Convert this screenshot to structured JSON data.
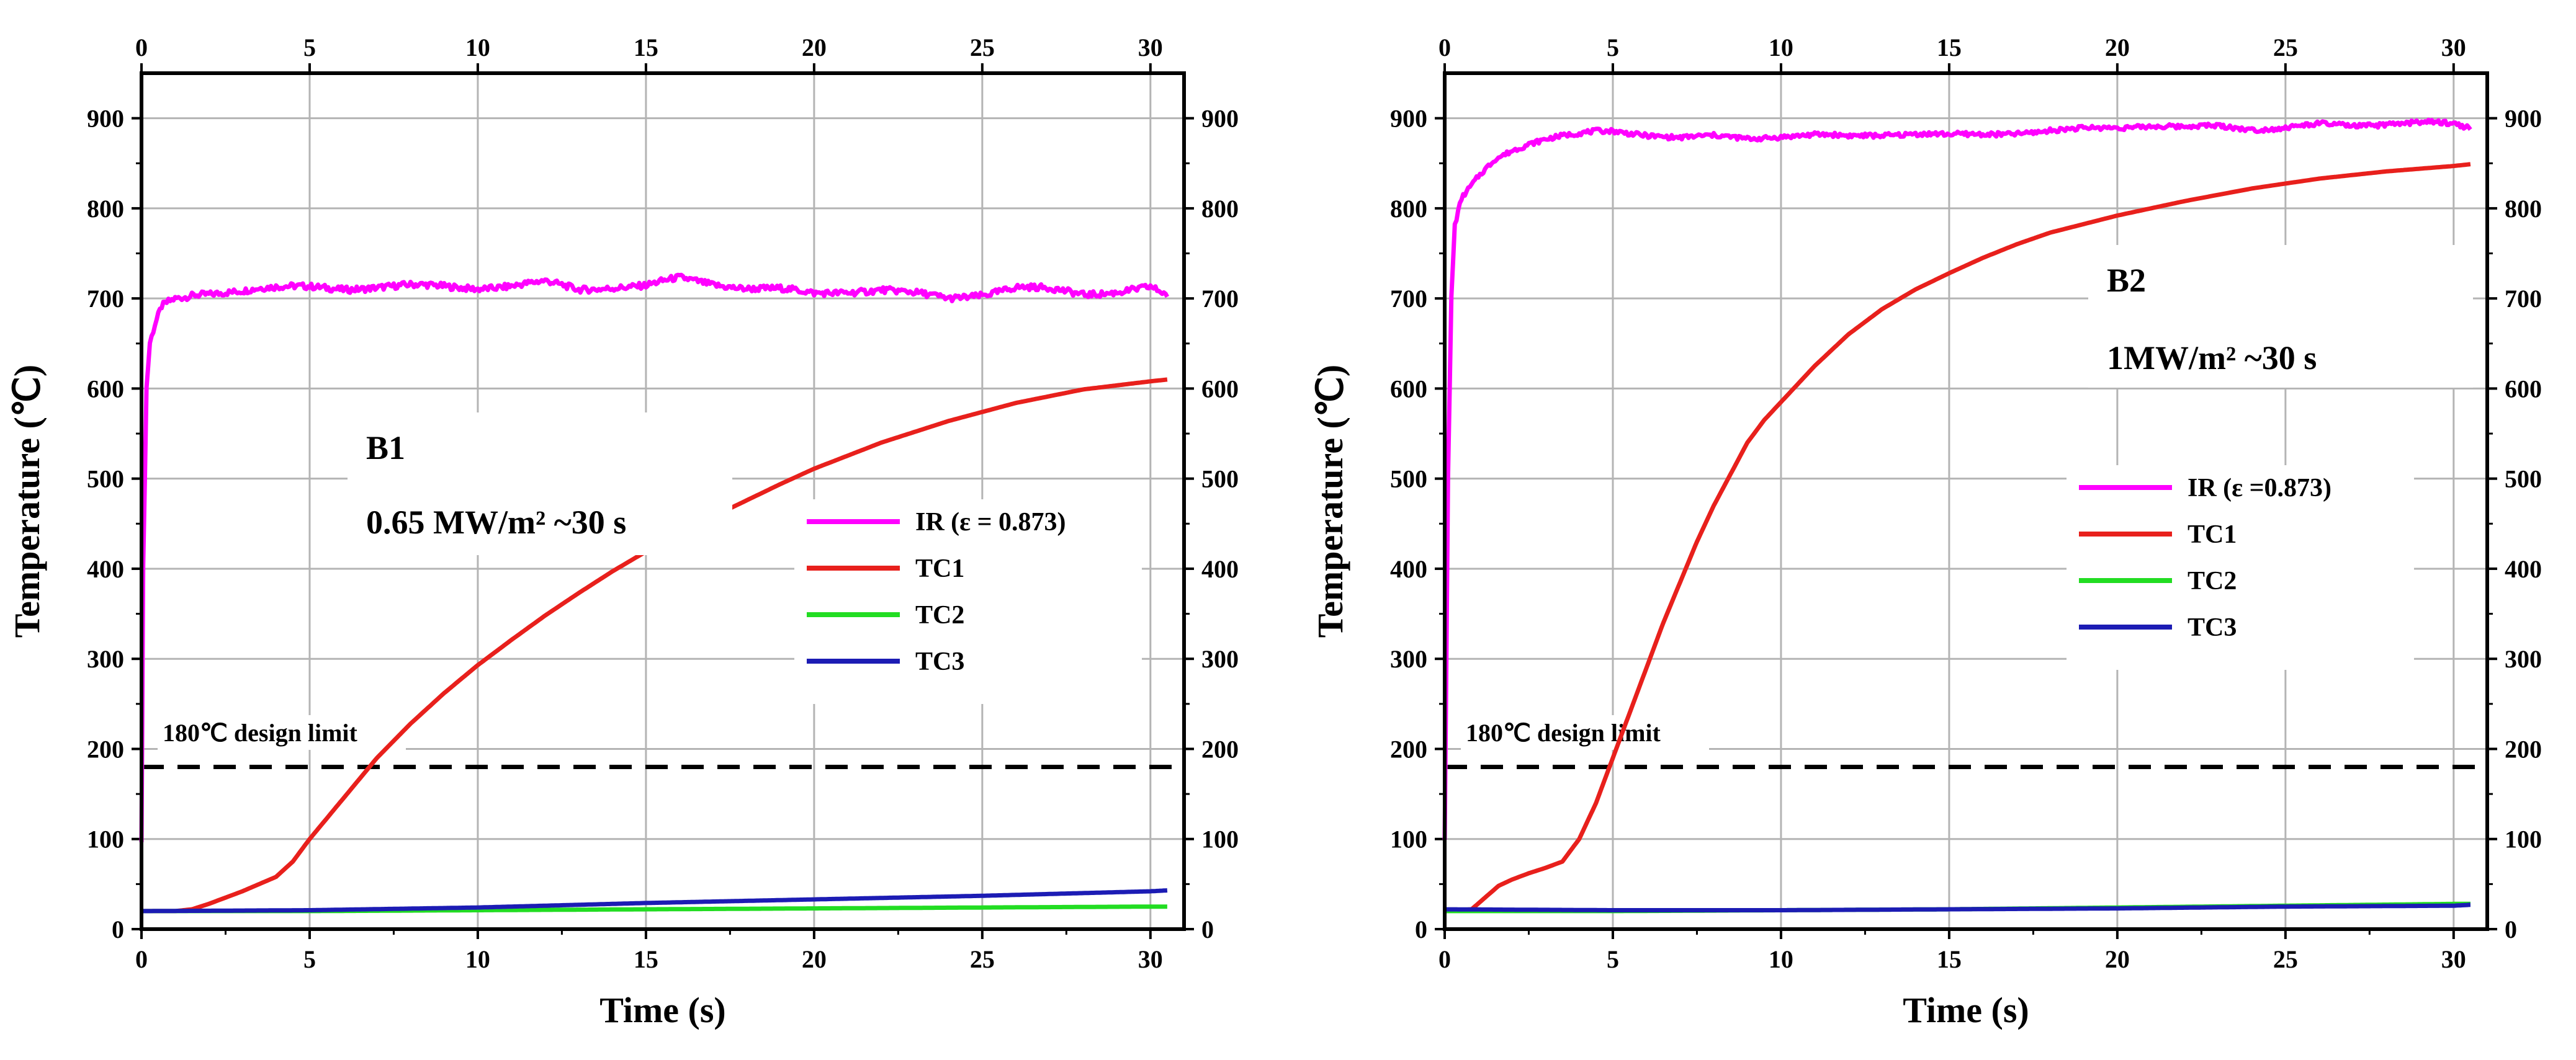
{
  "chart_data": [
    {
      "type": "line",
      "title": "",
      "xlabel": "Time (s)",
      "ylabel": "Temperature (℃)",
      "xlim": [
        0,
        31
      ],
      "ylim": [
        0,
        950
      ],
      "x_ticks": [
        0,
        5,
        10,
        15,
        20,
        25,
        30
      ],
      "y_ticks": [
        0,
        100,
        200,
        300,
        400,
        500,
        600,
        700,
        800,
        900
      ],
      "grid": true,
      "legend_position": "center-right",
      "annotation_lines": [
        "B1",
        "0.65 MW/m² ~30 s"
      ],
      "limit": {
        "value": 180,
        "label": "180℃ design limit",
        "style": "dashed",
        "color": "#000000"
      },
      "series": [
        {
          "name": "IR (ε = 0.873)",
          "color": "#ff00ff",
          "noise": 7,
          "x": [
            0,
            0.05,
            0.15,
            0.25,
            0.4,
            0.6,
            0.8,
            1.0,
            1.3,
            1.6,
            2,
            2.5,
            3,
            3.5,
            4,
            5,
            6,
            7,
            8,
            9,
            10,
            11,
            12,
            13,
            14,
            15,
            16,
            17,
            18,
            19,
            20,
            21,
            22,
            23,
            24,
            25,
            26,
            27,
            28,
            29,
            30,
            30.5
          ],
          "values": [
            100,
            400,
            600,
            650,
            670,
            690,
            695,
            698,
            700,
            703,
            705,
            708,
            710,
            712,
            712,
            712,
            711,
            713,
            714,
            713,
            712,
            714,
            718,
            710,
            713,
            714,
            722,
            716,
            712,
            710,
            705,
            708,
            710,
            705,
            700,
            705,
            712,
            710,
            705,
            708,
            712,
            702
          ]
        },
        {
          "name": "TC1",
          "color": "#e8201c",
          "noise": 0,
          "x": [
            0,
            1,
            1.5,
            2,
            2.5,
            3,
            3.5,
            4,
            4.5,
            5,
            6,
            7,
            8,
            9,
            10,
            11,
            12,
            13,
            14,
            15,
            16,
            17,
            18,
            19,
            20,
            22,
            24,
            26,
            28,
            30,
            30.5
          ],
          "values": [
            20,
            20,
            22,
            28,
            35,
            42,
            50,
            58,
            75,
            100,
            145,
            190,
            228,
            262,
            293,
            321,
            348,
            373,
            397,
            419,
            439,
            458,
            476,
            494,
            511,
            540,
            564,
            584,
            599,
            608,
            610
          ]
        },
        {
          "name": "TC2",
          "color": "#22dd22",
          "noise": 0,
          "x": [
            0,
            5,
            10,
            15,
            20,
            25,
            30,
            30.5
          ],
          "values": [
            20,
            20,
            21,
            22,
            23,
            24,
            25,
            25
          ]
        },
        {
          "name": "TC3",
          "color": "#1c1cb4",
          "noise": 0,
          "x": [
            0,
            5,
            10,
            15,
            20,
            25,
            30,
            30.5
          ],
          "values": [
            20,
            21,
            24,
            29,
            33,
            37,
            42,
            43
          ]
        }
      ]
    },
    {
      "type": "line",
      "title": "",
      "xlabel": "Time (s)",
      "ylabel": "Temperature (℃)",
      "xlim": [
        0,
        31
      ],
      "ylim": [
        0,
        950
      ],
      "x_ticks": [
        0,
        5,
        10,
        15,
        20,
        25,
        30
      ],
      "y_ticks": [
        0,
        100,
        200,
        300,
        400,
        500,
        600,
        700,
        800,
        900
      ],
      "grid": true,
      "legend_position": "center-right",
      "annotation_lines": [
        "B2",
        "1MW/m² ~30 s"
      ],
      "limit": {
        "value": 180,
        "label": "180℃ design limit",
        "style": "dashed",
        "color": "#000000"
      },
      "series": [
        {
          "name": "IR (ε =0.873)",
          "color": "#ff00ff",
          "noise": 5,
          "x": [
            0,
            0.1,
            0.2,
            0.3,
            0.5,
            0.8,
            1.0,
            1.5,
            2,
            2.5,
            3,
            3.5,
            4,
            4.5,
            5,
            6,
            7,
            8,
            9,
            10,
            11,
            12,
            13,
            14,
            15,
            16,
            17,
            18,
            19,
            20,
            21,
            22,
            23,
            24,
            25,
            26,
            27,
            28,
            29,
            30,
            30.5
          ],
          "values": [
            100,
            500,
            700,
            780,
            810,
            825,
            835,
            855,
            865,
            872,
            877,
            880,
            882,
            885,
            886,
            882,
            878,
            880,
            878,
            880,
            881,
            880,
            882,
            883,
            881,
            882,
            884,
            886,
            888,
            890,
            892,
            890,
            891,
            888,
            890,
            893,
            891,
            894,
            896,
            893,
            888
          ]
        },
        {
          "name": "TC1",
          "color": "#e8201c",
          "noise": 0,
          "x": [
            0,
            0.8,
            1.2,
            1.6,
            2,
            2.5,
            3,
            3.5,
            4,
            4.5,
            5,
            5.5,
            6,
            6.5,
            7,
            7.5,
            8,
            8.5,
            9,
            9.5,
            10,
            11,
            12,
            13,
            14,
            15,
            16,
            17,
            18,
            20,
            22,
            24,
            26,
            28,
            30,
            30.5
          ],
          "values": [
            20,
            22,
            35,
            48,
            55,
            62,
            68,
            75,
            100,
            140,
            190,
            240,
            290,
            340,
            385,
            430,
            470,
            505,
            540,
            565,
            585,
            625,
            660,
            688,
            710,
            728,
            745,
            760,
            773,
            792,
            808,
            822,
            833,
            841,
            847,
            849
          ]
        },
        {
          "name": "TC2",
          "color": "#22dd22",
          "noise": 0,
          "x": [
            0,
            5,
            10,
            15,
            20,
            25,
            30,
            30.5
          ],
          "values": [
            20,
            20,
            21,
            22,
            24,
            26,
            28,
            28
          ]
        },
        {
          "name": "TC3",
          "color": "#1c1cb4",
          "noise": 0,
          "x": [
            0,
            5,
            10,
            15,
            20,
            25,
            30,
            30.5
          ],
          "values": [
            22,
            21,
            21,
            22,
            23,
            25,
            26,
            27
          ]
        }
      ]
    }
  ]
}
